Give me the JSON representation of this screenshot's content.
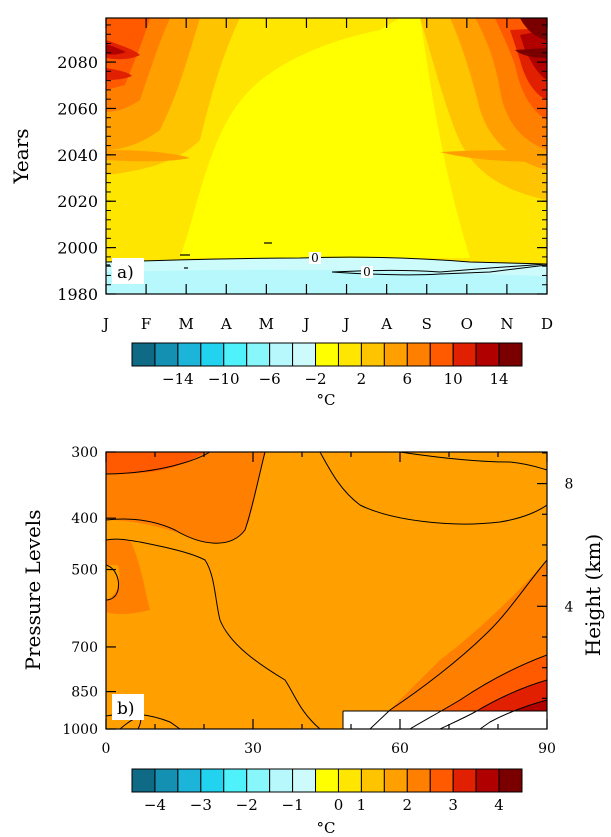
{
  "chart_data": [
    {
      "type": "heatmap",
      "panel_label": "a)",
      "xlabel": "",
      "ylabel": "Years",
      "x_tick_labels": [
        "J",
        "F",
        "M",
        "A",
        "M",
        "J",
        "J",
        "A",
        "S",
        "O",
        "N",
        "D"
      ],
      "y_ticks": [
        1980,
        2000,
        2020,
        2040,
        2060,
        2080
      ],
      "ylim": [
        1980,
        2099
      ],
      "contour_labels": [
        "0",
        "0"
      ],
      "colorbar": {
        "unit": "°C",
        "tick_labels": [
          "−14",
          "−10",
          "−6",
          "−2",
          "2",
          "6",
          "10",
          "14"
        ],
        "levels": [
          -16,
          -14,
          -12,
          -10,
          -8,
          -6,
          -4,
          -2,
          0,
          2,
          4,
          6,
          8,
          10,
          12,
          14,
          16
        ],
        "colors": [
          "#0f6a86",
          "#1490b3",
          "#1cb4d8",
          "#22d3f0",
          "#4ff2fb",
          "#88f7fb",
          "#b6f8fb",
          "#cdfbfb",
          "#ffff00",
          "#ffe600",
          "#ffc400",
          "#ffa000",
          "#ff7f00",
          "#ff5a00",
          "#e02000",
          "#b00000",
          "#7a0000"
        ]
      }
    },
    {
      "type": "heatmap",
      "panel_label": "b)",
      "xlabel": "",
      "ylabel": "Pressure Levels",
      "y2label": "Height (km)",
      "x_ticks": [
        0,
        30,
        60,
        90
      ],
      "xlim": [
        0,
        90
      ],
      "y_ticks": [
        300,
        400,
        500,
        700,
        850,
        1000
      ],
      "ylim": [
        1000,
        300
      ],
      "y2_ticks": [
        4,
        8
      ],
      "colorbar": {
        "unit": "°C",
        "tick_labels": [
          "−4",
          "−3",
          "−2",
          "−1",
          "0",
          "1",
          "2",
          "3",
          "4"
        ],
        "levels": [
          -4.5,
          -4,
          -3.5,
          -3,
          -2.5,
          -2,
          -1.5,
          -1,
          -0.5,
          0,
          0.5,
          1,
          1.5,
          2,
          2.5,
          3,
          3.5,
          4,
          4.5
        ],
        "colors": [
          "#0f6a86",
          "#1490b3",
          "#1cb4d8",
          "#22d3f0",
          "#4ff2fb",
          "#88f7fb",
          "#b6f8fb",
          "#cdfbfb",
          "#ffff00",
          "#ffe600",
          "#ffc400",
          "#ffa000",
          "#ff7f00",
          "#ff5a00",
          "#e02000",
          "#b00000",
          "#7a0000"
        ]
      }
    }
  ]
}
